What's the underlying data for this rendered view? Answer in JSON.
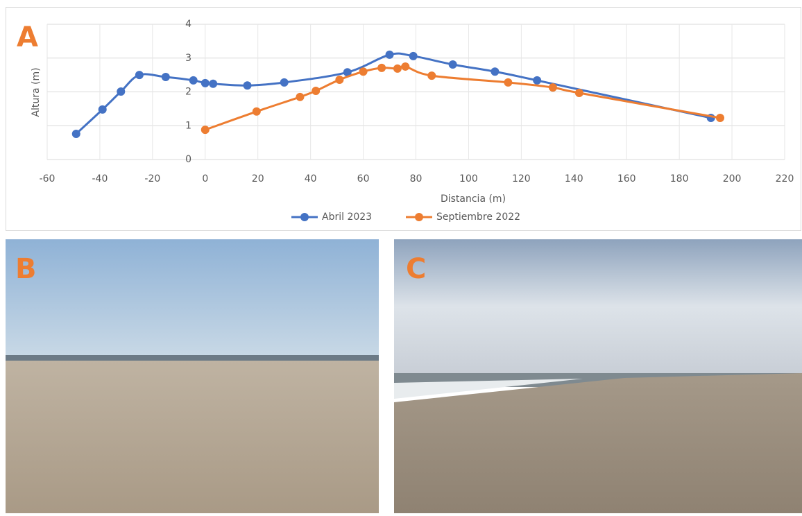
{
  "panel_labels": [
    "A",
    "B",
    "C"
  ],
  "chart_data": {
    "type": "line",
    "x_label": "Distancia (m)",
    "y_label": "Altura (m)",
    "xlim": [
      -60,
      220
    ],
    "xticks": [
      -60,
      -40,
      -20,
      0,
      20,
      40,
      60,
      80,
      100,
      120,
      140,
      160,
      180,
      200,
      220
    ],
    "ylim": [
      0,
      4
    ],
    "yticks": [
      0,
      1,
      2,
      3,
      4
    ],
    "grid": true,
    "smooth": true,
    "legend": "bottom",
    "series": [
      {
        "name": "Abril 2023",
        "color": "#4472c4",
        "x": [
          -49,
          -39,
          -32,
          -25,
          -15,
          -4.5,
          0,
          3,
          16,
          30,
          54,
          70,
          79,
          94,
          110,
          126,
          192
        ],
        "values": [
          0.76,
          1.48,
          2.01,
          2.5,
          2.44,
          2.34,
          2.26,
          2.24,
          2.19,
          2.28,
          2.58,
          3.1,
          3.06,
          2.81,
          2.6,
          2.34,
          1.23
        ]
      },
      {
        "name": "Septiembre 2022",
        "color": "#ed7d31",
        "x": [
          0,
          19.5,
          36,
          42,
          51,
          60,
          67,
          73,
          76,
          86,
          115,
          132,
          142,
          195.5
        ],
        "values": [
          0.88,
          1.42,
          1.85,
          2.03,
          2.36,
          2.6,
          2.71,
          2.69,
          2.75,
          2.48,
          2.28,
          2.13,
          1.97,
          1.23
        ]
      }
    ]
  }
}
